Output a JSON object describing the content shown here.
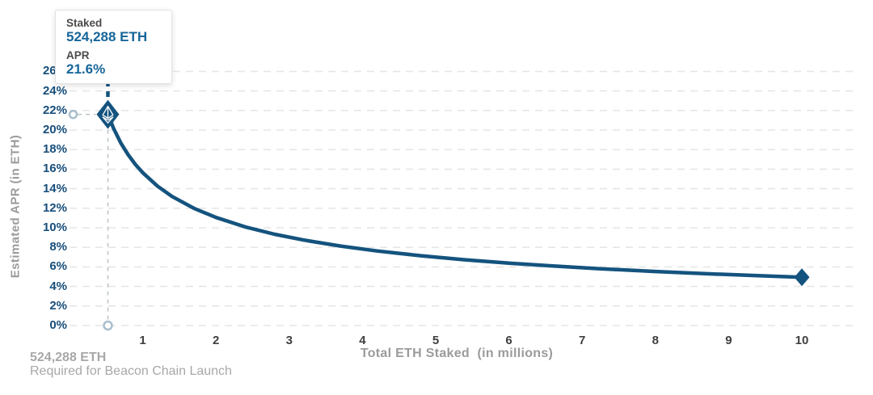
{
  "tooltip": {
    "staked_label": "Staked",
    "staked_value": "524,288 ETH",
    "apr_label": "APR",
    "apr_value": "21.6%"
  },
  "footnote": {
    "line1": "524,288 ETH",
    "line2": "Required for Beacon Chain Launch"
  },
  "colors": {
    "curve": "#14537E",
    "grid": "#E6E6E6",
    "y_tick_label": "#174E7B",
    "x_tick_label": "#3F3F3F",
    "axis_title": "#9B9B9B",
    "footnote": "#A8A8A8",
    "tooltip_label": "#4A4A4A",
    "tooltip_value": "#176699",
    "guide_dash": "#B9C2C9",
    "guide_circle": "#A9BECD",
    "marker_glyph": "#FFFFFF"
  },
  "chart_data": {
    "type": "line",
    "title": "",
    "xlabel": "Total ETH Staked  (in millions)",
    "ylabel": "Estimated APR (in ETH)",
    "x_ticks": [
      1,
      2,
      3,
      4,
      5,
      6,
      7,
      8,
      9,
      10
    ],
    "y_ticks": [
      "0%",
      "2%",
      "4%",
      "6%",
      "8%",
      "10%",
      "12%",
      "14%",
      "16%",
      "18%",
      "20%",
      "22%",
      "24%",
      "26%"
    ],
    "xlim": [
      0,
      10.7
    ],
    "ylim": [
      0,
      26
    ],
    "grid": "horizontal-dashed",
    "legend": "none",
    "series": [
      {
        "name": "Estimated APR",
        "points": [
          [
            0.524,
            21.6
          ],
          [
            0.6,
            20.19
          ],
          [
            0.7,
            18.69
          ],
          [
            0.8,
            17.48
          ],
          [
            0.9,
            16.48
          ],
          [
            1,
            15.64
          ],
          [
            1.2,
            14.27
          ],
          [
            1.4,
            13.21
          ],
          [
            1.7,
            11.99
          ],
          [
            2,
            11.06
          ],
          [
            2.4,
            10.09
          ],
          [
            2.8,
            9.34
          ],
          [
            3.2,
            8.74
          ],
          [
            3.7,
            8.13
          ],
          [
            4.2,
            7.63
          ],
          [
            4.8,
            7.14
          ],
          [
            5.4,
            6.73
          ],
          [
            6,
            6.38
          ],
          [
            6.6,
            6.09
          ],
          [
            7.2,
            5.83
          ],
          [
            8,
            5.53
          ],
          [
            8.8,
            5.27
          ],
          [
            9.4,
            5.1
          ],
          [
            10,
            4.94
          ]
        ]
      }
    ],
    "highlight_point": {
      "x": 0.524,
      "y": 21.6,
      "marker": "eth-logo-diamond"
    },
    "end_point": {
      "x": 10,
      "y": 4.94,
      "marker": "diamond"
    }
  }
}
